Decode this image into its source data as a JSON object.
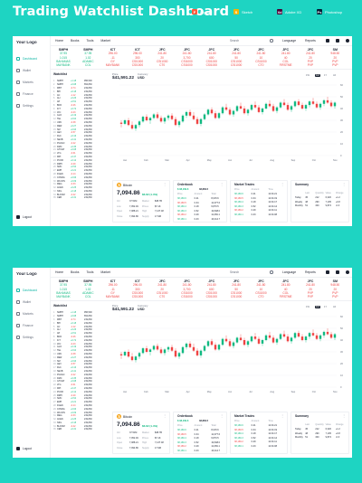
{
  "header": {
    "title": "Trading Watchlist Dashboard",
    "tools": [
      {
        "label": "Figma",
        "color": "#ff5a3c",
        "glyph": "F"
      },
      {
        "label": "Sketch",
        "color": "#f7b500",
        "glyph": "S"
      },
      {
        "label": "Adobe XD",
        "color": "#470137",
        "glyph": "Xd"
      },
      {
        "label": "Photoshop",
        "color": "#001e36",
        "glyph": "Ps"
      }
    ]
  },
  "app": {
    "logo": "Your Logo",
    "nav": [
      {
        "label": "Dashboard",
        "active": true
      },
      {
        "label": "Wallet",
        "active": false
      },
      {
        "label": "Markets",
        "active": false
      },
      {
        "label": "Finance",
        "active": false
      },
      {
        "label": "Settings",
        "active": false
      }
    ],
    "logout": "Logout",
    "topnav": [
      "Home",
      "Books",
      "Tools",
      "Market"
    ],
    "search_placeholder": "Search",
    "language": "Language",
    "reports": "Reports",
    "ticker": [
      {
        "sym": "SMPH",
        "l1": "37.95",
        "l2": "1.015",
        "l3": "BAHAMAS",
        "l4": "MAYBANK",
        "dir": "up"
      },
      {
        "sym": "SMPH",
        "l1": "37.95",
        "l2": "1.02",
        "l3": "ADAMIC",
        "l4": "COL",
        "dir": "up"
      },
      {
        "sym": "ICT",
        "l1": "296.00",
        "l2": "-11",
        "l3": "GY",
        "l4": "MAYBANK",
        "dir": "dn"
      },
      {
        "sym": "ICT",
        "l1": "296.00",
        "l2": "300",
        "l3": "CSI1000",
        "l4": "CSI1000",
        "dir": "dn"
      },
      {
        "sym": "JFC",
        "l1": "241.80",
        "l2": "20",
        "l3": "CSI1000",
        "l4": "CT0",
        "dir": "dn"
      },
      {
        "sym": "JFC",
        "l1": "241.80",
        "l2": "3,700",
        "l3": "CSI1000",
        "l4": "CSI1000",
        "dir": "dn"
      },
      {
        "sym": "JFC",
        "l1": "241.80",
        "l2": "600",
        "l3": "CSI1000",
        "l4": "CSI1000",
        "dir": "dn"
      },
      {
        "sym": "JFC",
        "l1": "241.80",
        "l2": "50",
        "l3": "CSI1000",
        "l4": "CSI1000",
        "dir": "dn"
      },
      {
        "sym": "JFC",
        "l1": "241.80",
        "l2": "10",
        "l3": "CSI1000",
        "l4": "CT0",
        "dir": "dn"
      },
      {
        "sym": "JFC",
        "l1": "241.80",
        "l2": "40",
        "l3": "COL",
        "l4": "FIRSTME",
        "dir": "dn"
      },
      {
        "sym": "JFC",
        "l1": "241.80",
        "l2": "20",
        "l3": "PVP",
        "l4": "PVP",
        "dir": "dn"
      },
      {
        "sym": "SM",
        "l1": "948.50",
        "l2": "20",
        "l3": "PVP",
        "l4": "PVP",
        "dir": "dn"
      }
    ],
    "watchlist": {
      "title": "Watchlist",
      "rows": [
        {
          "n": "1",
          "sym": "SMPH",
          "chg": "+1.18",
          "price": "956,500",
          "dir": "g"
        },
        {
          "n": "2",
          "sym": "SMPH",
          "chg": "+0.08",
          "price": "654,830",
          "dir": "g"
        },
        {
          "n": "3",
          "sym": "MBT",
          "chg": "-0.74",
          "price": "219,830",
          "dir": "r"
        },
        {
          "n": "4",
          "sym": "BPI",
          "chg": "+0.18",
          "price": "219,830",
          "dir": "g"
        },
        {
          "n": "5",
          "sym": "AC",
          "chg": "-1.12",
          "price": "219,830",
          "dir": "r"
        },
        {
          "n": "6",
          "sym": "ALI",
          "chg": "+0.26",
          "price": "219,830",
          "dir": "g"
        },
        {
          "n": "7",
          "sym": "AP",
          "chg": "+0.51",
          "price": "219,830",
          "dir": "g"
        },
        {
          "n": "8",
          "sym": "BDO",
          "chg": "-0.26",
          "price": "219,830",
          "dir": "r"
        },
        {
          "n": "9",
          "sym": "ICT",
          "chg": "+0.72",
          "price": "219,830",
          "dir": "g"
        },
        {
          "n": "10",
          "sym": "JFC",
          "chg": "-0.43",
          "price": "219,830",
          "dir": "r"
        },
        {
          "n": "11",
          "sym": "GLO",
          "chg": "+0.19",
          "price": "219,830",
          "dir": "g"
        },
        {
          "n": "12",
          "sym": "TEL",
          "chg": "+0.64",
          "price": "219,830",
          "dir": "g"
        },
        {
          "n": "13",
          "sym": "URC",
          "chg": "-0.38",
          "price": "219,830",
          "dir": "r"
        },
        {
          "n": "14",
          "sym": "MER",
          "chg": "+0.27",
          "price": "219,830",
          "dir": "g"
        },
        {
          "n": "15",
          "sym": "SM",
          "chg": "+0.93",
          "price": "219,830",
          "dir": "g"
        },
        {
          "n": "16",
          "sym": "AEV",
          "chg": "-0.57",
          "price": "219,830",
          "dir": "r"
        },
        {
          "n": "17",
          "sym": "RLC",
          "chg": "+0.16",
          "price": "219,830",
          "dir": "g"
        },
        {
          "n": "18",
          "sym": "SECB",
          "chg": "+0.41",
          "price": "219,830",
          "dir": "g"
        },
        {
          "n": "19",
          "sym": "PGOLD",
          "chg": "-0.22",
          "price": "219,830",
          "dir": "r"
        },
        {
          "n": "20",
          "sym": "DMC",
          "chg": "+0.35",
          "price": "219,830",
          "dir": "g"
        },
        {
          "n": "21",
          "sym": "GTCAP",
          "chg": "+0.08",
          "price": "219,830",
          "dir": "g"
        },
        {
          "n": "22",
          "sym": "LTG",
          "chg": "-0.61",
          "price": "219,830",
          "dir": "r"
        },
        {
          "n": "23",
          "sym": "MPI",
          "chg": "+0.47",
          "price": "219,830",
          "dir": "g"
        },
        {
          "n": "24",
          "sym": "PCOR",
          "chg": "+0.12",
          "price": "219,830",
          "dir": "g"
        },
        {
          "n": "25",
          "sym": "RRHI",
          "chg": "-0.29",
          "price": "219,830",
          "dir": "r"
        },
        {
          "n": "26",
          "sym": "SMC",
          "chg": "+0.54",
          "price": "219,830",
          "dir": "g"
        },
        {
          "n": "27",
          "sym": "EMP",
          "chg": "+0.21",
          "price": "219,830",
          "dir": "g"
        },
        {
          "n": "28",
          "sym": "FGEN",
          "chg": "-0.14",
          "price": "219,830",
          "dir": "r"
        },
        {
          "n": "29",
          "sym": "CNVRG",
          "chg": "+0.66",
          "price": "219,830",
          "dir": "g"
        },
        {
          "n": "30",
          "sym": "WLCON",
          "chg": "+0.09",
          "price": "219,830",
          "dir": "g"
        },
        {
          "n": "31",
          "sym": "MEG",
          "chg": "-0.33",
          "price": "219,830",
          "dir": "r"
        },
        {
          "n": "32",
          "sym": "ACEN",
          "chg": "+0.25",
          "price": "219,830",
          "dir": "g"
        },
        {
          "n": "33",
          "sym": "NIKL",
          "chg": "+0.18",
          "price": "219,830",
          "dir": "g"
        },
        {
          "n": "34",
          "sym": "BLOOM",
          "chg": "-0.42",
          "price": "219,830",
          "dir": "r"
        },
        {
          "n": "35",
          "sym": "CEB",
          "chg": "+0.31",
          "price": "219,830",
          "dir": "g"
        }
      ]
    },
    "chart": {
      "price_label": "Price",
      "price_value": "$41,591.22",
      "currency_label": "Currency",
      "currency_value": "USD",
      "timeframes": [
        "1W",
        "1M",
        "1Y",
        "All"
      ],
      "active_tf": "1M"
    },
    "bitcoin": {
      "name": "Bitcoin",
      "price": "7,094.86",
      "change": "$6.82 (1.4%)",
      "stats": [
        [
          "Vol",
          "37.51M",
          "Market",
          "$38.7B"
        ],
        [
          "Low",
          "7,052.49",
          "Prices",
          "$7.1K"
        ],
        [
          "Open",
          "7,088.21",
          "High",
          "7,137.48"
        ],
        [
          "Close",
          "7,094.86",
          "Supply",
          "17.9M"
        ]
      ]
    },
    "orderbook": {
      "title": "Orderbook",
      "price": "$ 38,169.6",
      "sub": "38,809.5",
      "header": [
        "Price",
        "Amount",
        "Total"
      ],
      "rows": [
        [
          "38,169.6",
          "0.21",
          "8,015.6",
          "g"
        ],
        [
          "38,169.5",
          "0.34",
          "12,977.6",
          "r"
        ],
        [
          "38,169.4",
          "0.18",
          "6,870.5",
          "g"
        ],
        [
          "38,169.3",
          "0.52",
          "19,848.0",
          "g"
        ],
        [
          "38,169.2",
          "0.29",
          "11,069.1",
          "r"
        ],
        [
          "38,169.1",
          "0.43",
          "16,412.7",
          "g"
        ]
      ]
    },
    "trades": {
      "title": "Market Trades",
      "header": [
        "Price",
        "Amount",
        "Time"
      ],
      "rows": [
        [
          "38,169.6",
          "0.21",
          "12:01:21",
          "g"
        ],
        [
          "38,169.5",
          "0.34",
          "12:01:19",
          "r"
        ],
        [
          "38,169.4",
          "0.18",
          "12:01:17",
          "g"
        ],
        [
          "38,169.3",
          "0.52",
          "12:01:14",
          "g"
        ],
        [
          "38,169.2",
          "0.29",
          "12:01:11",
          "r"
        ],
        [
          "38,169.1",
          "0.43",
          "12:01:08",
          "g"
        ]
      ]
    },
    "summary": {
      "title": "Summary",
      "header": [
        "",
        "Last",
        "Quantity",
        "Value",
        "Change"
      ],
      "rows": [
        [
          "Today",
          "45",
          "212",
          "6,320",
          "+1.2"
        ],
        [
          "Weekly",
          "48",
          "290",
          "7,105",
          "+0.8"
        ],
        [
          "Monthly",
          "51",
          "340",
          "9,874",
          "-0.3"
        ]
      ]
    }
  },
  "chart_data": {
    "type": "candlestick",
    "x_labels": [
      "Jan",
      "Feb",
      "Mar",
      "Apr",
      "May",
      "Jun",
      "Jul",
      "Aug",
      "Sep",
      "Oct",
      "Nov"
    ],
    "y_ticks": [
      0,
      10,
      20,
      30,
      40,
      50,
      60
    ],
    "ylim": [
      0,
      60
    ],
    "candles": [
      [
        28,
        30,
        24,
        27
      ],
      [
        27,
        31,
        26,
        30
      ],
      [
        30,
        32,
        25,
        26
      ],
      [
        26,
        29,
        22,
        23
      ],
      [
        23,
        27,
        21,
        26
      ],
      [
        26,
        30,
        24,
        29
      ],
      [
        29,
        34,
        28,
        33
      ],
      [
        33,
        35,
        29,
        30
      ],
      [
        30,
        33,
        27,
        32
      ],
      [
        32,
        36,
        31,
        35
      ],
      [
        35,
        37,
        31,
        32
      ],
      [
        32,
        34,
        28,
        29
      ],
      [
        29,
        33,
        27,
        32
      ],
      [
        32,
        35,
        30,
        34
      ],
      [
        34,
        36,
        30,
        31
      ],
      [
        31,
        33,
        25,
        26
      ],
      [
        26,
        30,
        24,
        29
      ],
      [
        29,
        35,
        28,
        34
      ],
      [
        34,
        38,
        32,
        37
      ],
      [
        37,
        39,
        33,
        34
      ],
      [
        34,
        37,
        30,
        31
      ],
      [
        31,
        33,
        26,
        27
      ],
      [
        27,
        32,
        25,
        31
      ],
      [
        31,
        36,
        30,
        35
      ],
      [
        35,
        40,
        34,
        39
      ],
      [
        39,
        41,
        35,
        36
      ],
      [
        36,
        38,
        31,
        32
      ],
      [
        32,
        37,
        31,
        36
      ],
      [
        36,
        42,
        35,
        41
      ],
      [
        41,
        44,
        38,
        39
      ],
      [
        39,
        41,
        34,
        35
      ],
      [
        35,
        39,
        33,
        38
      ],
      [
        38,
        43,
        37,
        42
      ],
      [
        42,
        45,
        39,
        40
      ],
      [
        40,
        42,
        35,
        36
      ],
      [
        36,
        40,
        34,
        39
      ],
      [
        39,
        44,
        38,
        43
      ],
      [
        43,
        46,
        40,
        41
      ],
      [
        41,
        43,
        36,
        37
      ],
      [
        37,
        41,
        35,
        40
      ],
      [
        40,
        45,
        39,
        44
      ],
      [
        44,
        47,
        41,
        42
      ],
      [
        42,
        44,
        37,
        38
      ],
      [
        38,
        42,
        36,
        41
      ],
      [
        41,
        46,
        40,
        45
      ],
      [
        45,
        48,
        42,
        43
      ],
      [
        43,
        45,
        38,
        39
      ],
      [
        39,
        43,
        37,
        42
      ],
      [
        42,
        47,
        41,
        46
      ],
      [
        46,
        48,
        42,
        43
      ],
      [
        43,
        45,
        39,
        40
      ],
      [
        40,
        44,
        38,
        43
      ],
      [
        43,
        47,
        41,
        46
      ],
      [
        46,
        49,
        43,
        44
      ],
      [
        44,
        46,
        40,
        41
      ],
      [
        41,
        45,
        39,
        44
      ],
      [
        44,
        48,
        42,
        47
      ],
      [
        47,
        50,
        44,
        45
      ],
      [
        45,
        47,
        41,
        42
      ],
      [
        42,
        46,
        40,
        45
      ]
    ]
  }
}
